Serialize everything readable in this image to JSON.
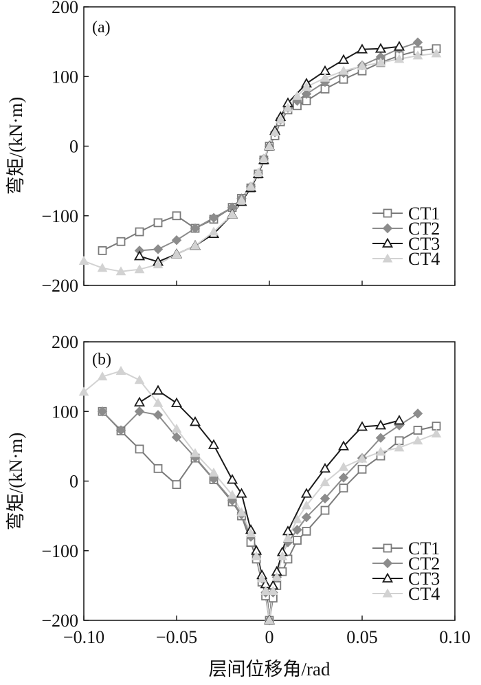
{
  "chart_data": [
    {
      "type": "line",
      "panel_label": "(a)",
      "ylabel": "弯矩/(kN·m)",
      "xlabel": "",
      "xlim": [
        -0.1,
        0.1
      ],
      "ylim": [
        -200,
        200
      ],
      "x_ticks": [
        -0.1,
        -0.05,
        0,
        0.05,
        0.1
      ],
      "y_ticks": [
        -200,
        -100,
        0,
        100,
        200
      ],
      "y_tick_labels": [
        "−200",
        "−100",
        "0",
        "100",
        "200"
      ],
      "legend_position": "bottom-right",
      "series": [
        {
          "name": "CT1",
          "color": "#7a7a7a",
          "marker": "square-open",
          "x": [
            -0.09,
            -0.08,
            -0.07,
            -0.06,
            -0.05,
            -0.04,
            -0.03,
            -0.02,
            -0.015,
            -0.01,
            -0.006,
            -0.003,
            0,
            0.003,
            0.006,
            0.01,
            0.015,
            0.02,
            0.03,
            0.04,
            0.05,
            0.06,
            0.07,
            0.08,
            0.09
          ],
          "y": [
            -150,
            -137,
            -123,
            -110,
            -100,
            -118,
            -105,
            -88,
            -75,
            -60,
            -40,
            -20,
            0,
            15,
            35,
            52,
            58,
            65,
            82,
            96,
            108,
            120,
            130,
            137,
            140
          ]
        },
        {
          "name": "CT2",
          "color": "#8c8c8c",
          "marker": "diamond-filled",
          "x": [
            -0.07,
            -0.06,
            -0.05,
            -0.04,
            -0.03,
            -0.02,
            -0.015,
            -0.01,
            -0.006,
            -0.003,
            0,
            0.003,
            0.006,
            0.01,
            0.015,
            0.02,
            0.03,
            0.04,
            0.05,
            0.06,
            0.07,
            0.08
          ],
          "y": [
            -150,
            -148,
            -135,
            -118,
            -103,
            -88,
            -75,
            -58,
            -40,
            -18,
            0,
            20,
            38,
            55,
            65,
            75,
            92,
            105,
            116,
            128,
            140,
            149
          ]
        },
        {
          "name": "CT3",
          "color": "#1a1a1a",
          "marker": "triangle-open",
          "x": [
            -0.07,
            -0.06,
            -0.05,
            -0.04,
            -0.03,
            -0.02,
            -0.015,
            -0.01,
            -0.006,
            -0.003,
            0,
            0.003,
            0.006,
            0.01,
            0.02,
            0.03,
            0.04,
            0.05,
            0.06,
            0.07
          ],
          "y": [
            -158,
            -166,
            -155,
            -143,
            -126,
            -98,
            -80,
            -60,
            -40,
            -20,
            0,
            22,
            42,
            62,
            90,
            108,
            124,
            139,
            140,
            143
          ]
        },
        {
          "name": "CT4",
          "color": "#d2d2d2",
          "marker": "triangle-filled",
          "x": [
            -0.1,
            -0.09,
            -0.08,
            -0.07,
            -0.06,
            -0.05,
            -0.04,
            -0.03,
            -0.02,
            -0.015,
            -0.01,
            -0.006,
            -0.003,
            0,
            0.003,
            0.006,
            0.01,
            0.015,
            0.02,
            0.03,
            0.04,
            0.05,
            0.06,
            0.07,
            0.08,
            0.09
          ],
          "y": [
            -165,
            -175,
            -180,
            -177,
            -170,
            -155,
            -143,
            -123,
            -98,
            -78,
            -58,
            -38,
            -18,
            0,
            20,
            38,
            55,
            72,
            85,
            98,
            108,
            115,
            120,
            125,
            130,
            133
          ]
        }
      ]
    },
    {
      "type": "line",
      "panel_label": "(b)",
      "ylabel": "弯矩/(kN·m)",
      "xlabel": "层间位移角/rad",
      "xlim": [
        -0.1,
        0.1
      ],
      "ylim": [
        -200,
        200
      ],
      "x_ticks": [
        -0.1,
        -0.05,
        0,
        0.05,
        0.1
      ],
      "x_tick_labels": [
        "−0.10",
        "−0.05",
        "0",
        "0.05",
        "0.10"
      ],
      "y_ticks": [
        -200,
        -100,
        0,
        100,
        200
      ],
      "y_tick_labels": [
        "−200",
        "−100",
        "0",
        "100",
        "200"
      ],
      "legend_position": "bottom-right",
      "series": [
        {
          "name": "CT1",
          "color": "#7a7a7a",
          "marker": "square-open",
          "x": [
            -0.09,
            -0.08,
            -0.07,
            -0.06,
            -0.05,
            -0.04,
            -0.03,
            -0.02,
            -0.015,
            -0.01,
            -0.007,
            -0.004,
            -0.002,
            0,
            0.002,
            0.004,
            0.007,
            0.01,
            0.015,
            0.02,
            0.03,
            0.04,
            0.05,
            0.06,
            0.07,
            0.08,
            0.09
          ],
          "y": [
            100,
            72,
            46,
            18,
            -5,
            33,
            2,
            -30,
            -50,
            -88,
            -112,
            -145,
            -165,
            -200,
            -168,
            -150,
            -130,
            -112,
            -85,
            -72,
            -42,
            -10,
            17,
            36,
            58,
            73,
            79
          ]
        },
        {
          "name": "CT2",
          "color": "#8c8c8c",
          "marker": "diamond-filled",
          "x": [
            -0.09,
            -0.08,
            -0.07,
            -0.06,
            -0.05,
            -0.04,
            -0.03,
            -0.02,
            -0.015,
            -0.01,
            -0.007,
            -0.004,
            -0.002,
            0,
            0.002,
            0.004,
            0.007,
            0.01,
            0.015,
            0.02,
            0.03,
            0.04,
            0.05,
            0.06,
            0.07,
            0.08
          ],
          "y": [
            100,
            73,
            100,
            95,
            63,
            34,
            3,
            -28,
            -48,
            -80,
            -103,
            -140,
            -160,
            -200,
            -160,
            -138,
            -105,
            -88,
            -70,
            -52,
            -25,
            5,
            33,
            62,
            80,
            97
          ]
        },
        {
          "name": "CT3",
          "color": "#1a1a1a",
          "marker": "triangle-open",
          "x": [
            -0.07,
            -0.06,
            -0.05,
            -0.04,
            -0.03,
            -0.02,
            -0.015,
            -0.01,
            -0.007,
            -0.004,
            -0.002,
            0,
            0.002,
            0.004,
            0.007,
            0.01,
            0.02,
            0.03,
            0.04,
            0.05,
            0.06,
            0.07
          ],
          "y": [
            113,
            130,
            112,
            85,
            52,
            2,
            -18,
            -70,
            -100,
            -135,
            -148,
            -200,
            -150,
            -130,
            -102,
            -72,
            -18,
            18,
            50,
            78,
            80,
            87
          ]
        },
        {
          "name": "CT4",
          "color": "#d2d2d2",
          "marker": "triangle-filled",
          "x": [
            -0.1,
            -0.09,
            -0.08,
            -0.07,
            -0.06,
            -0.05,
            -0.04,
            -0.03,
            -0.02,
            -0.015,
            -0.01,
            -0.007,
            -0.004,
            -0.002,
            0,
            0.002,
            0.004,
            0.007,
            0.01,
            0.015,
            0.02,
            0.03,
            0.04,
            0.05,
            0.06,
            0.07,
            0.08,
            0.09
          ],
          "y": [
            128,
            150,
            158,
            145,
            112,
            75,
            40,
            12,
            -20,
            -45,
            -75,
            -108,
            -140,
            -158,
            -200,
            -158,
            -138,
            -108,
            -82,
            -55,
            -35,
            -2,
            20,
            32,
            42,
            48,
            58,
            68
          ]
        }
      ]
    }
  ]
}
